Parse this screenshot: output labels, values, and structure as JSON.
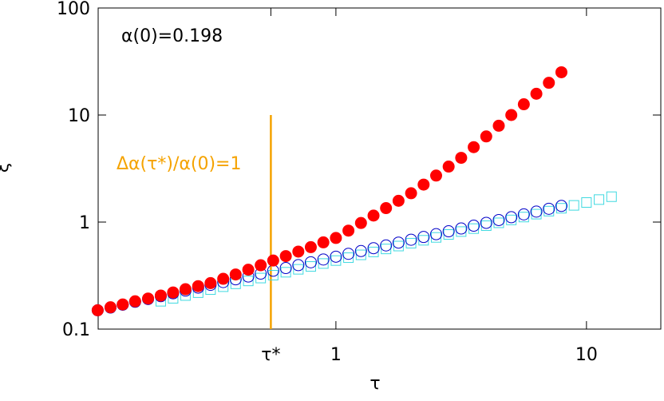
{
  "chart_data": {
    "type": "scatter",
    "log_x": true,
    "log_y": true,
    "grid": false,
    "xlabel": "τ",
    "ylabel": "ξ",
    "xlim": [
      0.1125,
      19.8
    ],
    "ylim": [
      0.1,
      100
    ],
    "xticks": [
      {
        "value": 0.55,
        "label": "τ*"
      },
      1,
      10
    ],
    "yticks": [
      0.1,
      1,
      10,
      100
    ],
    "annotations": [
      "α(0)=0.198"
    ],
    "vline": {
      "x": 0.55,
      "ymax": 10,
      "label": "Δα(τ*)/α(0)=1",
      "color": "#f5a300"
    },
    "series": [
      {
        "name": "cyan",
        "marker": "square-open",
        "color": "#3fd9e0",
        "x": [
          0.2,
          0.224,
          0.251,
          0.282,
          0.316,
          0.355,
          0.398,
          0.447,
          0.501,
          0.562,
          0.631,
          0.708,
          0.794,
          0.891,
          1,
          1.122,
          1.259,
          1.413,
          1.585,
          1.778,
          1.995,
          2.239,
          2.512,
          2.818,
          3.162,
          3.548,
          3.981,
          4.467,
          5.012,
          5.623,
          6.31,
          7.079,
          7.943,
          8.913,
          10,
          11.22,
          12.59
        ],
        "values": [
          0.182,
          0.194,
          0.206,
          0.219,
          0.234,
          0.249,
          0.265,
          0.282,
          0.3,
          0.319,
          0.34,
          0.362,
          0.385,
          0.41,
          0.437,
          0.465,
          0.494,
          0.526,
          0.561,
          0.597,
          0.635,
          0.676,
          0.719,
          0.766,
          0.815,
          0.869,
          0.925,
          0.984,
          1.047,
          1.114,
          1.186,
          1.265,
          1.346,
          1.432,
          1.524,
          1.622,
          1.726
        ]
      },
      {
        "name": "blue",
        "marker": "circle-open",
        "color": "#0000c8",
        "x": [
          0.112,
          0.126,
          0.141,
          0.158,
          0.178,
          0.2,
          0.224,
          0.251,
          0.282,
          0.316,
          0.355,
          0.398,
          0.447,
          0.501,
          0.562,
          0.631,
          0.708,
          0.794,
          0.891,
          1,
          1.122,
          1.259,
          1.413,
          1.585,
          1.778,
          1.995,
          2.239,
          2.512,
          2.818,
          3.162,
          3.548,
          3.981,
          4.467,
          5.012,
          5.623,
          6.31,
          7.079,
          7.943
        ],
        "values": [
          0.15,
          0.159,
          0.169,
          0.18,
          0.191,
          0.203,
          0.216,
          0.229,
          0.244,
          0.259,
          0.275,
          0.292,
          0.31,
          0.33,
          0.351,
          0.372,
          0.396,
          0.421,
          0.447,
          0.475,
          0.505,
          0.536,
          0.57,
          0.605,
          0.643,
          0.684,
          0.726,
          0.771,
          0.82,
          0.871,
          0.925,
          0.984,
          1.045,
          1.11,
          1.18,
          1.253,
          1.331,
          1.415
        ]
      },
      {
        "name": "red",
        "marker": "circle-filled",
        "color": "#ff0000",
        "x": [
          0.112,
          0.126,
          0.141,
          0.158,
          0.178,
          0.2,
          0.224,
          0.251,
          0.282,
          0.316,
          0.355,
          0.398,
          0.447,
          0.501,
          0.562,
          0.631,
          0.708,
          0.794,
          0.891,
          1,
          1.122,
          1.259,
          1.413,
          1.585,
          1.778,
          1.995,
          2.239,
          2.512,
          2.818,
          3.162,
          3.548,
          3.981,
          4.467,
          5.012,
          5.623,
          6.31,
          7.079,
          7.943
        ],
        "values": [
          0.15,
          0.16,
          0.17,
          0.182,
          0.193,
          0.206,
          0.22,
          0.236,
          0.252,
          0.269,
          0.295,
          0.324,
          0.359,
          0.395,
          0.437,
          0.481,
          0.53,
          0.583,
          0.646,
          0.71,
          0.832,
          0.98,
          1.15,
          1.35,
          1.58,
          1.86,
          2.24,
          2.72,
          3.3,
          3.98,
          5.01,
          6.31,
          7.94,
          10,
          12.6,
          15.8,
          20,
          25.1
        ]
      }
    ]
  }
}
